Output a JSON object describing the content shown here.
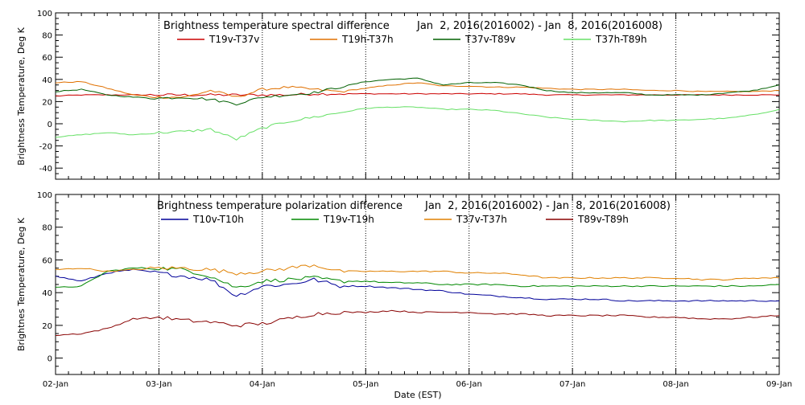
{
  "figure": {
    "xlabel": "Date (EST)",
    "x_ticks": [
      "02-Jan",
      "03-Jan",
      "04-Jan",
      "05-Jan",
      "06-Jan",
      "07-Jan",
      "08-Jan",
      "09-Jan"
    ],
    "x_range_days": [
      0,
      7
    ]
  },
  "chart_data": [
    {
      "type": "line",
      "title": "Brightness temperature spectral difference",
      "date_range": "Jan  2, 2016(2016002) - Jan  8, 2016(2016008)",
      "ylabel": "Brightness Temperature, Deg K",
      "ylim": [
        -50,
        100
      ],
      "y_ticks": [
        "-40",
        "-20",
        "0",
        "20",
        "40",
        "60",
        "80",
        "100"
      ],
      "y_tick_values": [
        -40,
        -20,
        0,
        20,
        40,
        60,
        80,
        100
      ],
      "x": [
        0,
        0.25,
        0.5,
        0.75,
        1.0,
        1.25,
        1.5,
        1.75,
        2.0,
        2.25,
        2.5,
        2.75,
        3.0,
        3.25,
        3.5,
        3.75,
        4.0,
        4.25,
        4.5,
        4.75,
        5.0,
        5.25,
        5.5,
        5.75,
        6.0,
        6.25,
        6.5,
        6.75,
        7.0
      ],
      "series": [
        {
          "name": "T19v-T37v",
          "color": "#cc0000",
          "values": [
            25,
            26,
            26,
            26,
            26,
            26,
            26,
            26,
            26,
            26,
            27,
            27,
            27,
            27,
            27,
            27,
            27,
            27,
            27,
            26,
            26,
            26,
            26,
            26,
            26,
            26,
            26,
            26,
            26
          ]
        },
        {
          "name": "T19h-T37h",
          "color": "#e07000",
          "values": [
            37,
            38,
            32,
            26,
            24,
            24,
            30,
            24,
            31,
            33,
            31,
            29,
            32,
            35,
            37,
            34,
            34,
            33,
            33,
            32,
            31,
            31,
            31,
            30,
            30,
            29,
            29,
            29,
            30
          ]
        },
        {
          "name": "T37v-T89v",
          "color": "#006000",
          "values": [
            29,
            31,
            26,
            24,
            23,
            24,
            22,
            18,
            24,
            26,
            28,
            33,
            38,
            40,
            41,
            35,
            37,
            37,
            35,
            30,
            28,
            28,
            28,
            26,
            26,
            26,
            28,
            30,
            35
          ]
        },
        {
          "name": "T37h-T89h",
          "color": "#66e066",
          "values": [
            -12,
            -10,
            -8,
            -10,
            -8,
            -7,
            -5,
            -14,
            -4,
            2,
            6,
            10,
            14,
            15,
            15,
            13,
            13,
            12,
            9,
            6,
            4,
            3,
            2,
            3,
            3,
            4,
            5,
            8,
            13
          ]
        }
      ]
    },
    {
      "type": "line",
      "title": "Brightness temperature polarization difference",
      "date_range": "Jan  2, 2016(2016002) - Jan  8, 2016(2016008)",
      "ylabel": "Brightnes Temperature, Deg K",
      "ylim": [
        -10,
        100
      ],
      "y_ticks": [
        "0",
        "20",
        "40",
        "60",
        "80",
        "100"
      ],
      "y_tick_values": [
        0,
        20,
        40,
        60,
        80,
        100
      ],
      "x": [
        0,
        0.25,
        0.5,
        0.75,
        1.0,
        1.25,
        1.5,
        1.75,
        2.0,
        2.25,
        2.5,
        2.75,
        3.0,
        3.25,
        3.5,
        3.75,
        4.0,
        4.25,
        4.5,
        4.75,
        5.0,
        5.25,
        5.5,
        5.75,
        6.0,
        6.25,
        6.5,
        6.75,
        7.0
      ],
      "series": [
        {
          "name": "T10v-T10h",
          "color": "#000099",
          "values": [
            50,
            47,
            52,
            54,
            52,
            50,
            48,
            38,
            44,
            45,
            48,
            44,
            44,
            43,
            42,
            41,
            39,
            38,
            37,
            36,
            36,
            36,
            35,
            35,
            35,
            35,
            35,
            35,
            35
          ]
        },
        {
          "name": "T19v-T19h",
          "color": "#008800",
          "values": [
            43,
            44,
            53,
            55,
            55,
            54,
            50,
            43,
            47,
            48,
            49,
            47,
            47,
            46,
            46,
            45,
            45,
            45,
            44,
            44,
            44,
            44,
            44,
            44,
            44,
            44,
            44,
            44,
            45
          ]
        },
        {
          "name": "T37v-T37h",
          "color": "#e08000",
          "values": [
            54,
            55,
            53,
            54,
            55,
            55,
            54,
            52,
            53,
            55,
            57,
            53,
            53,
            53,
            53,
            53,
            52,
            52,
            51,
            49,
            49,
            49,
            49,
            49,
            49,
            48,
            48,
            49,
            49
          ]
        },
        {
          "name": "T89v-T89h",
          "color": "#880000",
          "values": [
            14,
            15,
            18,
            24,
            25,
            23,
            22,
            20,
            21,
            24,
            27,
            28,
            28,
            29,
            28,
            28,
            28,
            27,
            27,
            26,
            26,
            26,
            26,
            25,
            25,
            24,
            24,
            25,
            26
          ]
        }
      ]
    }
  ]
}
